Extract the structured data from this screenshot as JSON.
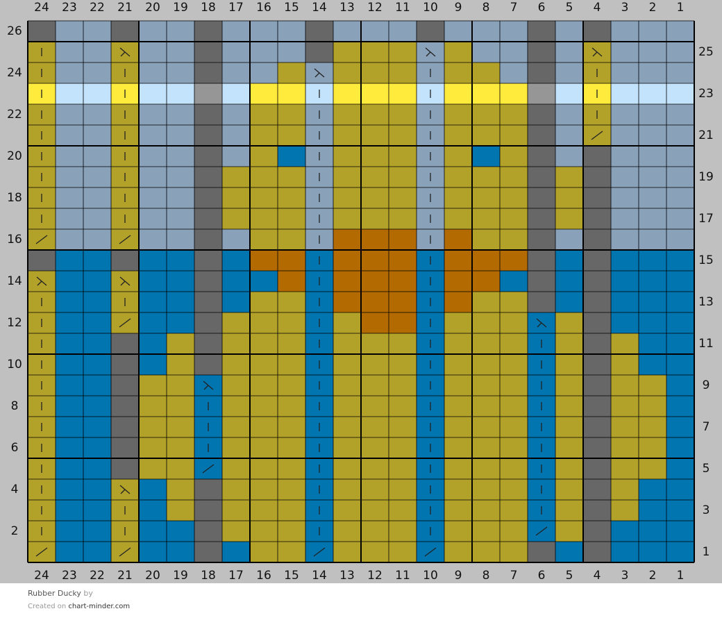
{
  "title": "Rubber Ducky",
  "by": "by",
  "created_on": "Created on",
  "site": "chart-minder.com",
  "columns": [
    24,
    23,
    22,
    21,
    20,
    19,
    18,
    17,
    16,
    15,
    14,
    13,
    12,
    11,
    10,
    9,
    8,
    7,
    6,
    5,
    4,
    3,
    2,
    1
  ],
  "rows": [
    1,
    2,
    3,
    4,
    5,
    6,
    7,
    8,
    9,
    10,
    11,
    12,
    13,
    14,
    15,
    16,
    17,
    18,
    19,
    20,
    21,
    22,
    23,
    24,
    25,
    26
  ]
}
